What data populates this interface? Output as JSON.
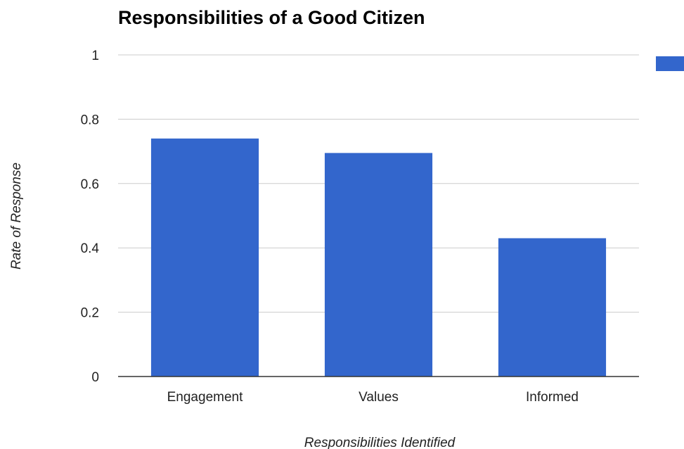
{
  "chart_data": {
    "type": "bar",
    "title": "Responsibilities of a Good Citizen",
    "xlabel": "Responsibilities Identified",
    "ylabel": "Rate of Response",
    "categories": [
      "Engagement",
      "Values",
      "Informed"
    ],
    "series": [
      {
        "values": [
          0.74,
          0.695,
          0.43
        ]
      }
    ],
    "ylim": [
      0,
      1
    ],
    "yticks": [
      "0",
      "0.2",
      "0.4",
      "0.6",
      "0.8",
      "1"
    ],
    "grid": true,
    "legend": "right",
    "colors": {
      "bar": "#3366CC",
      "grid": "#CCCCCC",
      "baseline": "#333333"
    }
  }
}
